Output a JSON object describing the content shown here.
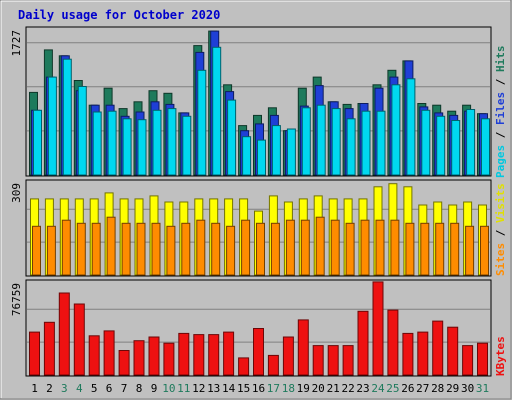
{
  "title": "Daily usage for October 2020",
  "colors": {
    "background": "#c0c0c0",
    "title": "#0000cc",
    "hits": "#1e7a5c",
    "files": "#1f3fd6",
    "pages": "#00d8f0",
    "visits": "#ffff00",
    "sites": "#ff8c00",
    "kbytes": "#ee1111",
    "weekend_label": "#1e7a5c",
    "weekday_label": "#000000"
  },
  "chart_data": [
    {
      "type": "bar",
      "panel": "hits-files-pages",
      "categories": [
        "1",
        "2",
        "3",
        "4",
        "5",
        "6",
        "7",
        "8",
        "9",
        "10",
        "11",
        "12",
        "13",
        "14",
        "15",
        "16",
        "17",
        "18",
        "19",
        "20",
        "21",
        "22",
        "23",
        "24",
        "25",
        "26",
        "27",
        "28",
        "29",
        "30",
        "31"
      ],
      "y_max_label": "1727",
      "ylim": [
        0,
        1727
      ],
      "series": [
        {
          "name": "Hits",
          "values": [
            970,
            1470,
            1400,
            1110,
            820,
            1020,
            780,
            860,
            990,
            960,
            730,
            1520,
            1690,
            1060,
            580,
            700,
            790,
            520,
            1020,
            1150,
            860,
            830,
            840,
            1060,
            1230,
            1340,
            840,
            820,
            750,
            820,
            720
          ]
        },
        {
          "name": "Files",
          "values": [
            760,
            1150,
            1400,
            990,
            820,
            820,
            690,
            740,
            860,
            830,
            730,
            1440,
            1690,
            980,
            520,
            600,
            700,
            520,
            810,
            1050,
            860,
            780,
            840,
            1020,
            1150,
            1340,
            800,
            730,
            700,
            750,
            720
          ]
        },
        {
          "name": "Pages",
          "values": [
            760,
            1150,
            1360,
            1040,
            740,
            750,
            660,
            650,
            760,
            780,
            690,
            1230,
            1500,
            880,
            450,
            410,
            580,
            540,
            790,
            820,
            780,
            660,
            750,
            750,
            1060,
            1130,
            760,
            690,
            640,
            770,
            660
          ]
        }
      ],
      "y_label_parts": [
        "Pages",
        "Files",
        "Hits"
      ]
    },
    {
      "type": "bar",
      "panel": "visits-sites",
      "categories": [
        "1",
        "2",
        "3",
        "4",
        "5",
        "6",
        "7",
        "8",
        "9",
        "10",
        "11",
        "12",
        "13",
        "14",
        "15",
        "16",
        "17",
        "18",
        "19",
        "20",
        "21",
        "22",
        "23",
        "24",
        "25",
        "26",
        "27",
        "28",
        "29",
        "30",
        "31"
      ],
      "y_max_label": "309",
      "ylim": [
        0,
        309
      ],
      "series": [
        {
          "name": "Visits",
          "values": [
            250,
            250,
            250,
            250,
            250,
            270,
            250,
            250,
            260,
            240,
            240,
            250,
            250,
            250,
            250,
            210,
            260,
            240,
            250,
            260,
            250,
            250,
            250,
            290,
            300,
            290,
            230,
            240,
            230,
            240,
            230
          ]
        },
        {
          "name": "Sites",
          "values": [
            160,
            160,
            180,
            170,
            170,
            190,
            170,
            170,
            170,
            160,
            170,
            180,
            170,
            160,
            180,
            170,
            170,
            180,
            180,
            190,
            180,
            170,
            180,
            180,
            180,
            170,
            170,
            170,
            170,
            160,
            160
          ]
        }
      ],
      "y_label_parts": [
        "Sites",
        "Visits"
      ]
    },
    {
      "type": "bar",
      "panel": "kbytes",
      "categories": [
        "1",
        "2",
        "3",
        "4",
        "5",
        "6",
        "7",
        "8",
        "9",
        "10",
        "11",
        "12",
        "13",
        "14",
        "15",
        "16",
        "17",
        "18",
        "19",
        "20",
        "21",
        "22",
        "23",
        "24",
        "25",
        "26",
        "27",
        "28",
        "29",
        "30",
        "31"
      ],
      "y_max_label": "76759",
      "ylim": [
        0,
        76759
      ],
      "series": [
        {
          "name": "KBytes",
          "values": [
            35000,
            43000,
            67000,
            58000,
            32000,
            36000,
            20000,
            28000,
            31000,
            26000,
            34000,
            33000,
            33000,
            35000,
            14000,
            38000,
            16000,
            31000,
            45000,
            24000,
            24000,
            24000,
            52000,
            76000,
            53000,
            34000,
            35000,
            44000,
            39000,
            24000,
            26000
          ]
        }
      ],
      "y_label_parts": [
        "KBytes"
      ]
    }
  ],
  "weekend_days": [
    3,
    4,
    10,
    11,
    17,
    18,
    24,
    25,
    31
  ]
}
